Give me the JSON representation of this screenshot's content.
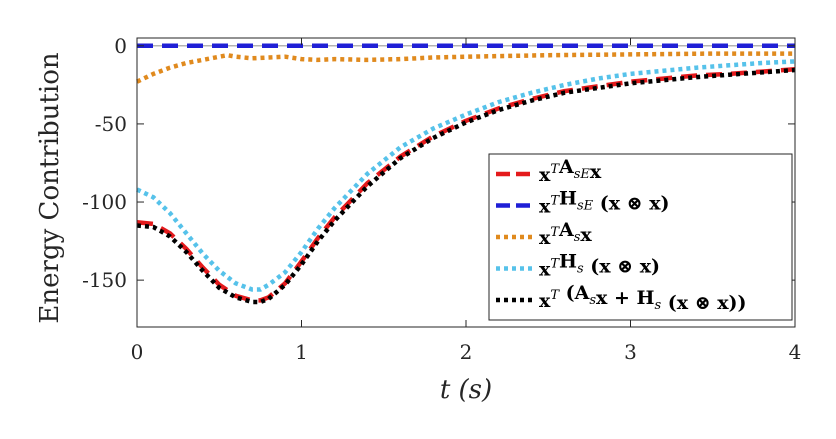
{
  "chart_data": {
    "type": "line",
    "title": "",
    "xlabel": "t (s)",
    "ylabel": "Energy Contribution",
    "xlim": [
      0,
      4
    ],
    "ylim": [
      -180,
      5
    ],
    "xticks": [
      0,
      1,
      2,
      3,
      4
    ],
    "xtick_labels": [
      "0",
      "1",
      "2",
      "3",
      "4"
    ],
    "yticks": [
      0,
      -50,
      -100,
      -150
    ],
    "ytick_labels": [
      "0",
      "-50",
      "-100",
      "-150"
    ],
    "grid": false,
    "legend_position": "right",
    "series": [
      {
        "name": "x^T A_sE x",
        "color": "#e41a1c",
        "style": "dashed",
        "x": [
          0,
          0.1,
          0.2,
          0.3,
          0.4,
          0.5,
          0.6,
          0.7,
          0.75,
          0.8,
          0.9,
          1.0,
          1.1,
          1.2,
          1.4,
          1.6,
          1.8,
          2.0,
          2.2,
          2.4,
          2.6,
          2.8,
          3.0,
          3.2,
          3.4,
          3.6,
          3.8,
          4.0
        ],
        "y": [
          -113,
          -114,
          -120,
          -130,
          -142,
          -153,
          -160,
          -163,
          -163,
          -161,
          -152,
          -138,
          -123,
          -110,
          -88,
          -71,
          -58,
          -48,
          -40,
          -34,
          -29,
          -26,
          -23,
          -21,
          -19,
          -18,
          -16.5,
          -15
        ]
      },
      {
        "name": "x^T H_sE (x ⊗ x)",
        "color": "#1f1fd6",
        "style": "dashed",
        "x": [
          0,
          1,
          2,
          3,
          4
        ],
        "y": [
          0,
          0,
          0,
          0,
          0
        ]
      },
      {
        "name": "x^T A_s x",
        "color": "#e08a1e",
        "style": "dotted",
        "x": [
          0,
          0.1,
          0.2,
          0.3,
          0.4,
          0.5,
          0.55,
          0.6,
          0.7,
          0.8,
          0.9,
          1.0,
          1.1,
          1.2,
          1.4,
          1.6,
          1.8,
          2.0,
          2.5,
          3.0,
          3.5,
          4.0
        ],
        "y": [
          -23,
          -18,
          -14,
          -11,
          -9,
          -7,
          -6,
          -7,
          -8,
          -7.5,
          -7,
          -8.5,
          -9,
          -8.5,
          -9,
          -8.5,
          -7.5,
          -7,
          -6,
          -5.5,
          -5,
          -5
        ]
      },
      {
        "name": "x^T H_s (x ⊗ x)",
        "color": "#56c2ea",
        "style": "dotted",
        "x": [
          0,
          0.1,
          0.2,
          0.3,
          0.4,
          0.5,
          0.6,
          0.7,
          0.75,
          0.8,
          0.9,
          1.0,
          1.1,
          1.2,
          1.4,
          1.6,
          1.8,
          2.0,
          2.2,
          2.4,
          2.6,
          2.8,
          3.0,
          3.2,
          3.4,
          3.6,
          3.8,
          4.0
        ],
        "y": [
          -92,
          -97,
          -107,
          -120,
          -133,
          -144,
          -152,
          -156,
          -156,
          -153,
          -145,
          -132,
          -117,
          -104,
          -82,
          -65,
          -53,
          -44,
          -36,
          -30,
          -25,
          -21,
          -18,
          -16,
          -14,
          -12.5,
          -11,
          -10
        ]
      },
      {
        "name": "x^T (A_s x + H_s (x ⊗ x))",
        "color": "#000000",
        "style": "dotted",
        "x": [
          0,
          0.1,
          0.2,
          0.3,
          0.4,
          0.5,
          0.6,
          0.7,
          0.75,
          0.8,
          0.9,
          1.0,
          1.1,
          1.2,
          1.4,
          1.6,
          1.8,
          2.0,
          2.2,
          2.4,
          2.6,
          2.8,
          3.0,
          3.2,
          3.4,
          3.6,
          3.8,
          4.0
        ],
        "y": [
          -115,
          -116,
          -122,
          -132,
          -144,
          -155,
          -161,
          -164,
          -164,
          -162,
          -153,
          -140,
          -125,
          -112,
          -90,
          -72,
          -59,
          -49,
          -41,
          -35,
          -30,
          -27,
          -24,
          -22,
          -20,
          -18.5,
          -17,
          -15.5
        ]
      }
    ]
  },
  "legend": {
    "entries": [
      {
        "pre": "x",
        "sup": "T",
        "main": "A",
        "sub": "sE",
        "post": "x"
      },
      {
        "pre": "x",
        "sup": "T",
        "main": "H",
        "sub": "sE",
        "post": " (x ⊗ x)"
      },
      {
        "pre": "x",
        "sup": "T",
        "main": "A",
        "sub": "s",
        "post": "x"
      },
      {
        "pre": "x",
        "sup": "T",
        "main": "H",
        "sub": "s",
        "post": " (x ⊗ x)"
      },
      {
        "pre": "x",
        "sup": "T",
        "main": " (A",
        "sub": "s",
        "post": "x + H",
        "sub2": "s",
        "post2": " (x ⊗ x))"
      }
    ]
  }
}
